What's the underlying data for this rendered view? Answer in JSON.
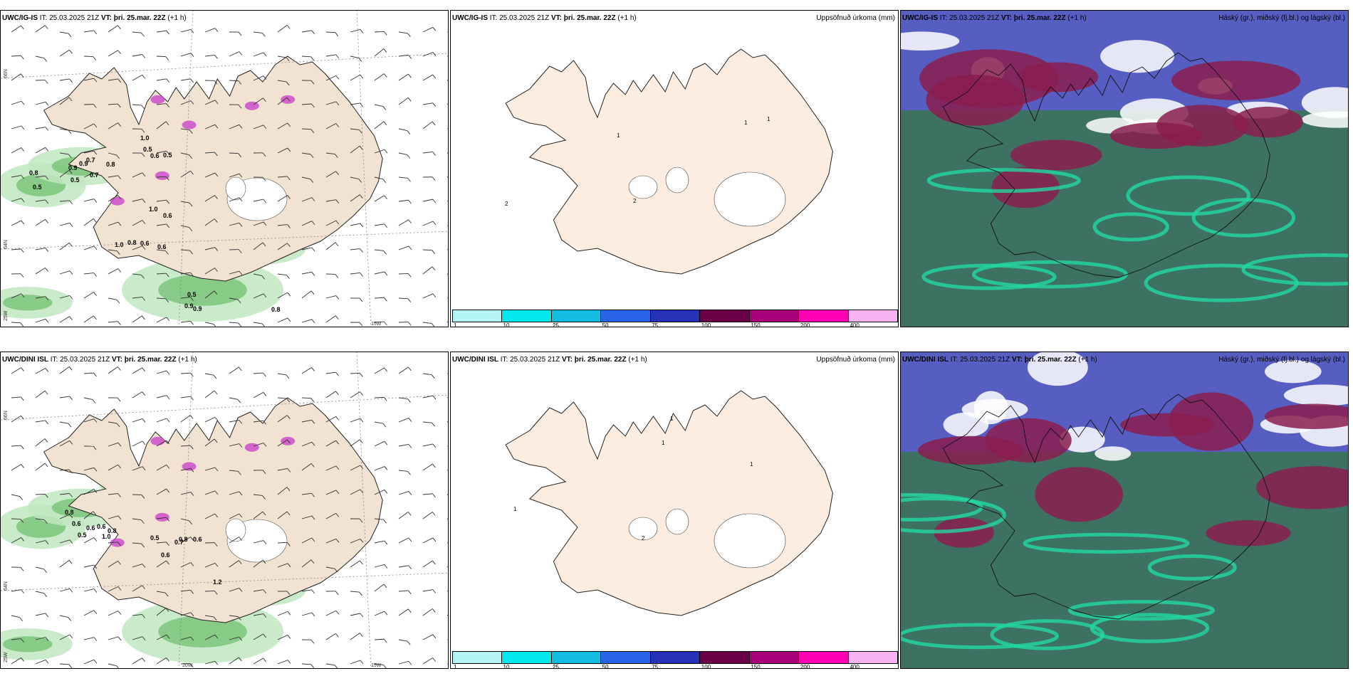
{
  "rows": [
    {
      "model": "UWC/IG-IS",
      "it_label": "IT:",
      "it_value": "25.03.2025 21Z",
      "vt_label": "VT:",
      "vt_value": "þri. 25.mar. 22Z",
      "lead": "(+1 h)"
    },
    {
      "model": "UWC/DINI ISL",
      "it_label": "IT:",
      "it_value": "25.03.2025 21Z",
      "vt_label": "VT:",
      "vt_value": "þri. 25.mar. 22Z",
      "lead": "(+1 h)"
    }
  ],
  "precip_title": "Uppsöfnuð úrkoma (mm)",
  "cloud_title": "Háský (gr.), miðský (fj.bl.) og lágský (bl.)",
  "colorbar": {
    "labels": [
      "1",
      "10",
      "25",
      "50",
      "75",
      "100",
      "150",
      "200",
      "400"
    ],
    "colors": [
      "#b3f5f5",
      "#00e8ec",
      "#14bde0",
      "#2a64e6",
      "#2632b8",
      "#6a0045",
      "#a8007a",
      "#ff00b3",
      "#f7b3f3"
    ]
  },
  "grid_labels": {
    "lat66": "66N",
    "lat64": "64N",
    "lon25": "25W",
    "lon20": "20W",
    "lon15": "15W"
  },
  "top_left_values": [
    "0.8",
    "0.5",
    "0.9",
    "0.5",
    "0.9",
    "0.7",
    "0.7",
    "0.8",
    "1.0",
    "0.5",
    "0.6",
    "0.5",
    "1.0",
    "0.6",
    "1.0",
    "0.8",
    "0.6",
    "0.6",
    "0.5",
    "0.9",
    "0.9",
    "0.8"
  ],
  "top_precip_values": [
    "1",
    "1",
    "1",
    "2",
    "2"
  ],
  "bottom_left_values": [
    "0.8",
    "0.6",
    "0.5",
    "0.6",
    "0.6",
    "0.8",
    "1.0",
    "0.5",
    "0.8",
    "0.6",
    "0.7",
    "0.6",
    "1.2"
  ],
  "bottom_precip_values": [
    "1",
    "1",
    "1",
    "1",
    "2"
  ]
}
